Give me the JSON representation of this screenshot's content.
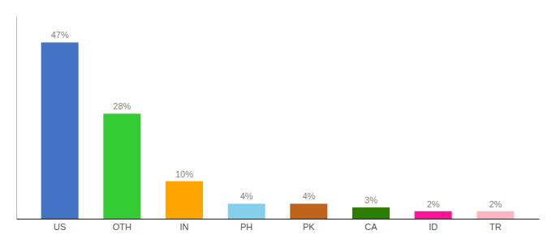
{
  "chart_data": {
    "type": "bar",
    "categories": [
      "US",
      "OTH",
      "IN",
      "PH",
      "PK",
      "CA",
      "ID",
      "TR"
    ],
    "values": [
      47,
      28,
      10,
      4,
      4,
      3,
      2,
      2
    ],
    "value_labels": [
      "47%",
      "28%",
      "10%",
      "4%",
      "4%",
      "3%",
      "2%",
      "2%"
    ],
    "colors": [
      "#4472C4",
      "#33CC33",
      "#FFA500",
      "#87CEEB",
      "#C0621A",
      "#2E7D00",
      "#FF1493",
      "#FFB6C1"
    ],
    "ylim": [
      0,
      54
    ],
    "data_labels": true,
    "tick_labels": "x",
    "grid": false
  }
}
